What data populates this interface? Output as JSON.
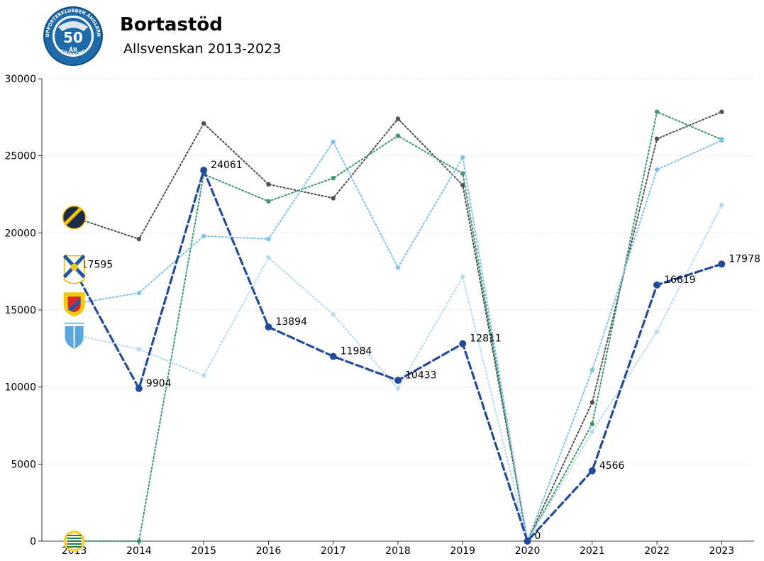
{
  "header": {
    "title": "Bortastöd",
    "subtitle": "Allsvenskan 2013-2023",
    "logo": {
      "ring_text_top": "SUPPORTERKLUBBEN ÄNGLARNA",
      "ring_text_bottom": "GÖTEBORG",
      "center_number": "50",
      "center_word": "ÅR"
    }
  },
  "chart_data": {
    "type": "line",
    "x": [
      2013,
      2014,
      2015,
      2016,
      2017,
      2018,
      2019,
      2020,
      2021,
      2022,
      2023
    ],
    "xlim": [
      2012.5,
      2023.5
    ],
    "ylim": [
      0,
      30000
    ],
    "yticks": [
      0,
      5000,
      10000,
      15000,
      20000,
      25000,
      30000
    ],
    "grid": true,
    "legend": "team logos at left of first data point",
    "series": [
      {
        "team_logo": "aik-logo",
        "color": "#505050",
        "style": "dotted",
        "values": [
          21000,
          19600,
          27100,
          23150,
          22250,
          27400,
          23100,
          0,
          9000,
          26100,
          27850
        ]
      },
      {
        "team_logo": "hammarby-logo",
        "color": "#3a9a6a",
        "style": "dotted",
        "values": [
          0,
          0,
          23800,
          22050,
          23550,
          26300,
          23850,
          0,
          7600,
          27850,
          26050
        ]
      },
      {
        "team_logo": "djurgarden-logo",
        "color": "#7fc4e6",
        "style": "dotted",
        "values": [
          15400,
          16100,
          19800,
          19600,
          25900,
          17750,
          24900,
          0,
          11100,
          24100,
          26000
        ]
      },
      {
        "team_logo": "malmo-logo",
        "color": "#b8daee",
        "style": "dotted",
        "values": [
          13400,
          12450,
          10750,
          18400,
          14700,
          9900,
          17150,
          0,
          7100,
          13600,
          21800
        ]
      },
      {
        "team_logo": "ifk-goteborg-logo",
        "color": "#234b9b",
        "style": "dashed",
        "highlight": true,
        "values": [
          17595,
          9904,
          24061,
          13894,
          11984,
          10433,
          12811,
          0,
          4566,
          16619,
          17978
        ],
        "data_labels": [
          "17595",
          "9904",
          "24061",
          "13894",
          "11984",
          "10433",
          "12811",
          "0",
          "4566",
          "16619",
          "17978"
        ]
      }
    ]
  }
}
